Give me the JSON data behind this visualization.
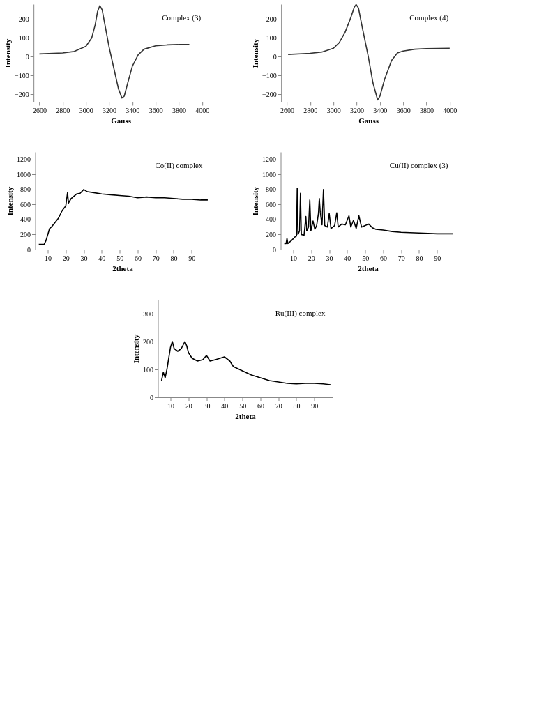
{
  "chart_data": [
    {
      "type": "line",
      "xlabel": "Gauss",
      "ylabel": "Intensity",
      "annotations": [
        "Complex (3)"
      ],
      "xlim": [
        2550,
        4050
      ],
      "xticks": [
        2600,
        2800,
        3000,
        3200,
        3400,
        3600,
        3800,
        4000
      ],
      "ylim": [
        -240,
        280
      ],
      "yticks": [
        -200,
        -100,
        0,
        100,
        200
      ],
      "x": [
        2600,
        2800,
        2900,
        3000,
        3050,
        3080,
        3100,
        3120,
        3140,
        3170,
        3200,
        3240,
        3280,
        3310,
        3330,
        3360,
        3400,
        3450,
        3500,
        3600,
        3700,
        3800,
        3890
      ],
      "series": [
        {
          "color": "#333333",
          "values": [
            15,
            20,
            28,
            55,
            100,
            170,
            240,
            272,
            250,
            150,
            50,
            -60,
            -170,
            -220,
            -210,
            -140,
            -50,
            10,
            40,
            58,
            63,
            65,
            65
          ]
        }
      ]
    },
    {
      "type": "line",
      "xlabel": "Gauss",
      "ylabel": "Intensity",
      "annotations": [
        "Complex (4)"
      ],
      "xlim": [
        2550,
        4050
      ],
      "xticks": [
        2600,
        2800,
        3000,
        3200,
        3400,
        3600,
        3800,
        4000
      ],
      "ylim": [
        -240,
        280
      ],
      "yticks": [
        -200,
        -100,
        0,
        100,
        200
      ],
      "x": [
        2610,
        2800,
        2900,
        3000,
        3050,
        3100,
        3150,
        3180,
        3195,
        3215,
        3250,
        3300,
        3340,
        3380,
        3400,
        3440,
        3500,
        3550,
        3600,
        3700,
        3800,
        4000
      ],
      "series": [
        {
          "color": "#333333",
          "values": [
            12,
            18,
            25,
            45,
            75,
            130,
            210,
            265,
            278,
            260,
            150,
            0,
            -140,
            -230,
            -210,
            -120,
            -20,
            20,
            30,
            40,
            43,
            45
          ]
        }
      ]
    },
    {
      "type": "line",
      "xlabel": "2theta",
      "ylabel": "Intensity",
      "annotations": [
        "Co(II) complex"
      ],
      "xlim": [
        3,
        100
      ],
      "xticks": [
        10,
        20,
        30,
        40,
        50,
        60,
        70,
        80,
        90
      ],
      "ylim": [
        0,
        1300
      ],
      "yticks": [
        0,
        200,
        400,
        600,
        800,
        1000,
        1200
      ],
      "x": [
        5,
        8,
        9,
        10,
        11,
        12,
        14,
        16,
        18,
        20,
        21,
        21.5,
        23,
        26,
        28,
        30,
        32,
        35,
        40,
        45,
        50,
        55,
        60,
        65,
        70,
        75,
        80,
        85,
        90,
        95,
        99
      ],
      "series": [
        {
          "color": "#000000",
          "values": [
            70,
            70,
            120,
            200,
            280,
            300,
            360,
            420,
            520,
            580,
            760,
            620,
            680,
            740,
            750,
            800,
            770,
            760,
            740,
            730,
            720,
            710,
            690,
            700,
            690,
            690,
            680,
            670,
            670,
            660,
            660
          ]
        }
      ]
    },
    {
      "type": "line",
      "xlabel": "2theta",
      "ylabel": "Intensity",
      "annotations": [
        "Cu(II) complex (3)"
      ],
      "xlim": [
        3,
        100
      ],
      "xticks": [
        10,
        20,
        30,
        40,
        50,
        60,
        70,
        80,
        90
      ],
      "ylim": [
        0,
        1300
      ],
      "yticks": [
        0,
        200,
        400,
        600,
        800,
        1000,
        1200
      ],
      "x": [
        5,
        6,
        6.5,
        7,
        9,
        11,
        11.8,
        12.2,
        12.6,
        13.5,
        14,
        14.5,
        16,
        17,
        17.5,
        18.5,
        19.2,
        19.8,
        21,
        22,
        23,
        24,
        24.5,
        25,
        26,
        26.8,
        27.5,
        29,
        30,
        31,
        33,
        34.2,
        35,
        37,
        39,
        41,
        42,
        43.5,
        45,
        46.5,
        48,
        50,
        52,
        54,
        56,
        60,
        65,
        70,
        80,
        90,
        99
      ],
      "series": [
        {
          "color": "#000000",
          "values": [
            80,
            80,
            150,
            80,
            120,
            170,
            180,
            820,
            200,
            250,
            750,
            200,
            190,
            440,
            250,
            300,
            660,
            250,
            380,
            270,
            320,
            480,
            680,
            500,
            330,
            800,
            320,
            300,
            480,
            280,
            320,
            490,
            300,
            340,
            330,
            450,
            300,
            390,
            280,
            450,
            300,
            320,
            340,
            290,
            270,
            260,
            240,
            230,
            220,
            210,
            210
          ]
        }
      ]
    },
    {
      "type": "line",
      "xlabel": "2theta",
      "ylabel": "Intensity",
      "annotations": [
        "Ru(III) complex"
      ],
      "xlim": [
        3,
        100
      ],
      "xticks": [
        10,
        20,
        30,
        40,
        50,
        60,
        70,
        80,
        90
      ],
      "ylim": [
        0,
        350
      ],
      "yticks": [
        0,
        100,
        200,
        300
      ],
      "x": [
        5,
        6,
        7,
        8,
        9,
        10,
        11,
        12,
        14,
        16,
        18,
        19,
        20,
        22,
        25,
        28,
        30,
        32,
        35,
        40,
        43,
        45,
        50,
        55,
        60,
        65,
        70,
        75,
        80,
        85,
        90,
        95,
        99
      ],
      "series": [
        {
          "color": "#000000",
          "values": [
            60,
            90,
            70,
            100,
            140,
            180,
            200,
            175,
            165,
            175,
            200,
            185,
            160,
            140,
            130,
            135,
            150,
            130,
            135,
            145,
            130,
            110,
            95,
            80,
            70,
            60,
            55,
            50,
            48,
            50,
            50,
            48,
            45
          ]
        }
      ]
    }
  ]
}
